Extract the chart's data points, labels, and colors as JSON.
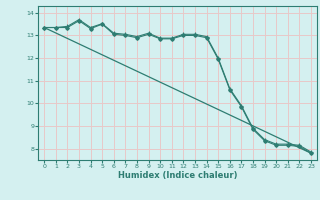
{
  "xlabel": "Humidex (Indice chaleur)",
  "ylabel": "",
  "bg_color": "#d4f0f0",
  "grid_color": "#e8c8c8",
  "line_color": "#2e7d72",
  "xlim": [
    -0.5,
    23.5
  ],
  "ylim": [
    7.5,
    14.3
  ],
  "yticks": [
    8,
    9,
    10,
    11,
    12,
    13,
    14
  ],
  "xticks": [
    0,
    1,
    2,
    3,
    4,
    5,
    6,
    7,
    8,
    9,
    10,
    11,
    12,
    13,
    14,
    15,
    16,
    17,
    18,
    19,
    20,
    21,
    22,
    23
  ],
  "line1_x": [
    0,
    1,
    2,
    3,
    4,
    5,
    6,
    7,
    8,
    9,
    10,
    11,
    12,
    13,
    14,
    15,
    16,
    17,
    18,
    19,
    20,
    21,
    22,
    23
  ],
  "line1_y": [
    13.35,
    13.35,
    13.35,
    13.65,
    13.3,
    13.5,
    13.05,
    13.0,
    12.9,
    13.05,
    12.85,
    12.85,
    13.0,
    13.0,
    12.9,
    11.95,
    10.6,
    9.85,
    8.85,
    8.35,
    8.15,
    8.15,
    8.1,
    7.8
  ],
  "line2_x": [
    0,
    1,
    2,
    3,
    4,
    5,
    6,
    7,
    8,
    9,
    10,
    11,
    12,
    13,
    14,
    15,
    16,
    17,
    18,
    19,
    20,
    21,
    22,
    23
  ],
  "line2_y": [
    13.35,
    13.35,
    13.4,
    13.7,
    13.35,
    13.52,
    13.1,
    13.05,
    12.95,
    13.1,
    12.88,
    12.88,
    13.05,
    13.05,
    12.95,
    12.0,
    10.65,
    9.9,
    8.9,
    8.4,
    8.2,
    8.2,
    8.15,
    7.85
  ],
  "line3_x": [
    0,
    23
  ],
  "line3_y": [
    13.35,
    7.8
  ]
}
